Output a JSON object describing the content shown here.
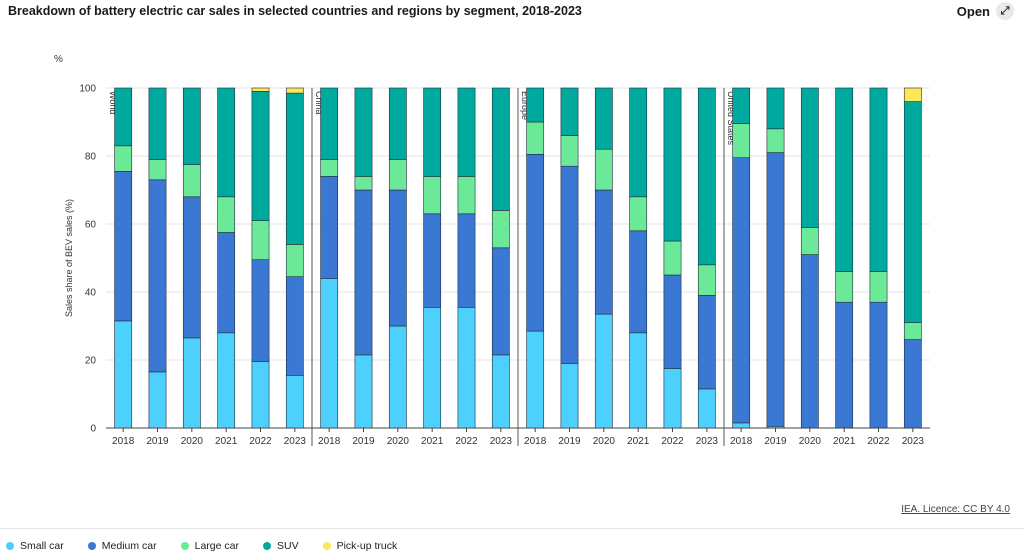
{
  "header": {
    "title": "Breakdown of battery electric car sales in selected countries and regions by segment, 2018-2023",
    "open_label": "Open",
    "open_icon": "expand-arrows-icon"
  },
  "footer": {
    "licence": "IEA. Licence: CC BY 4.0"
  },
  "chart_data": {
    "type": "bar",
    "stacked": true,
    "unit_label": "%",
    "ylabel": "Sales share of BEV sales (%)",
    "ylim": [
      0,
      100
    ],
    "yticks": [
      0,
      20,
      40,
      60,
      80,
      100
    ],
    "grid": true,
    "legend_position": "bottom",
    "segments": [
      {
        "name": "Small car",
        "color": "#4dd0fb"
      },
      {
        "name": "Medium car",
        "color": "#3a78d4"
      },
      {
        "name": "Large car",
        "color": "#6ce899"
      },
      {
        "name": "SUV",
        "color": "#00a99d"
      },
      {
        "name": "Pick-up truck",
        "color": "#fbe75a"
      }
    ],
    "groups": [
      {
        "name": "World",
        "years": [
          "2018",
          "2019",
          "2020",
          "2021",
          "2022",
          "2023"
        ],
        "small": [
          31.5,
          16.5,
          26.5,
          28,
          19.5,
          15.5
        ],
        "medium": [
          44,
          56.5,
          41.5,
          29.5,
          30,
          29
        ],
        "large": [
          7.5,
          6,
          9.5,
          10.5,
          11.5,
          9.5
        ],
        "suv": [
          17,
          21,
          22.5,
          32,
          38,
          44.5
        ],
        "pickup": [
          0,
          0,
          0,
          0,
          1,
          1.5
        ]
      },
      {
        "name": "China",
        "years": [
          "2018",
          "2019",
          "2020",
          "2021",
          "2022",
          "2023"
        ],
        "small": [
          44,
          21.5,
          30,
          35.5,
          35.5,
          21.5
        ],
        "medium": [
          30,
          48.5,
          40,
          27.5,
          27.5,
          31.5
        ],
        "large": [
          5,
          4,
          9,
          11,
          11,
          11
        ],
        "suv": [
          21,
          26,
          21,
          26,
          26,
          36
        ],
        "pickup": [
          0,
          0,
          0,
          0,
          0,
          0
        ]
      },
      {
        "name": "Europe",
        "years": [
          "2018",
          "2019",
          "2020",
          "2021",
          "2022",
          "2023"
        ],
        "small": [
          28.5,
          19,
          33.5,
          28,
          17.5,
          11.5
        ],
        "medium": [
          52,
          58,
          36.5,
          30,
          27.5,
          27.5
        ],
        "large": [
          9.5,
          9,
          12,
          10,
          10,
          9
        ],
        "suv": [
          10,
          14,
          18,
          32,
          45,
          52
        ],
        "pickup": [
          0,
          0,
          0,
          0,
          0,
          0
        ]
      },
      {
        "name": "United States",
        "years": [
          "2018",
          "2019",
          "2020",
          "2021",
          "2022",
          "2023"
        ],
        "small": [
          1.5,
          0.5,
          0,
          0,
          0,
          0
        ],
        "medium": [
          78,
          80.5,
          51,
          37,
          37,
          26
        ],
        "large": [
          10,
          7,
          8,
          9,
          9,
          5
        ],
        "suv": [
          10.5,
          12,
          41,
          54,
          54,
          65
        ],
        "pickup": [
          0,
          0,
          0,
          0,
          0,
          4
        ]
      }
    ]
  }
}
